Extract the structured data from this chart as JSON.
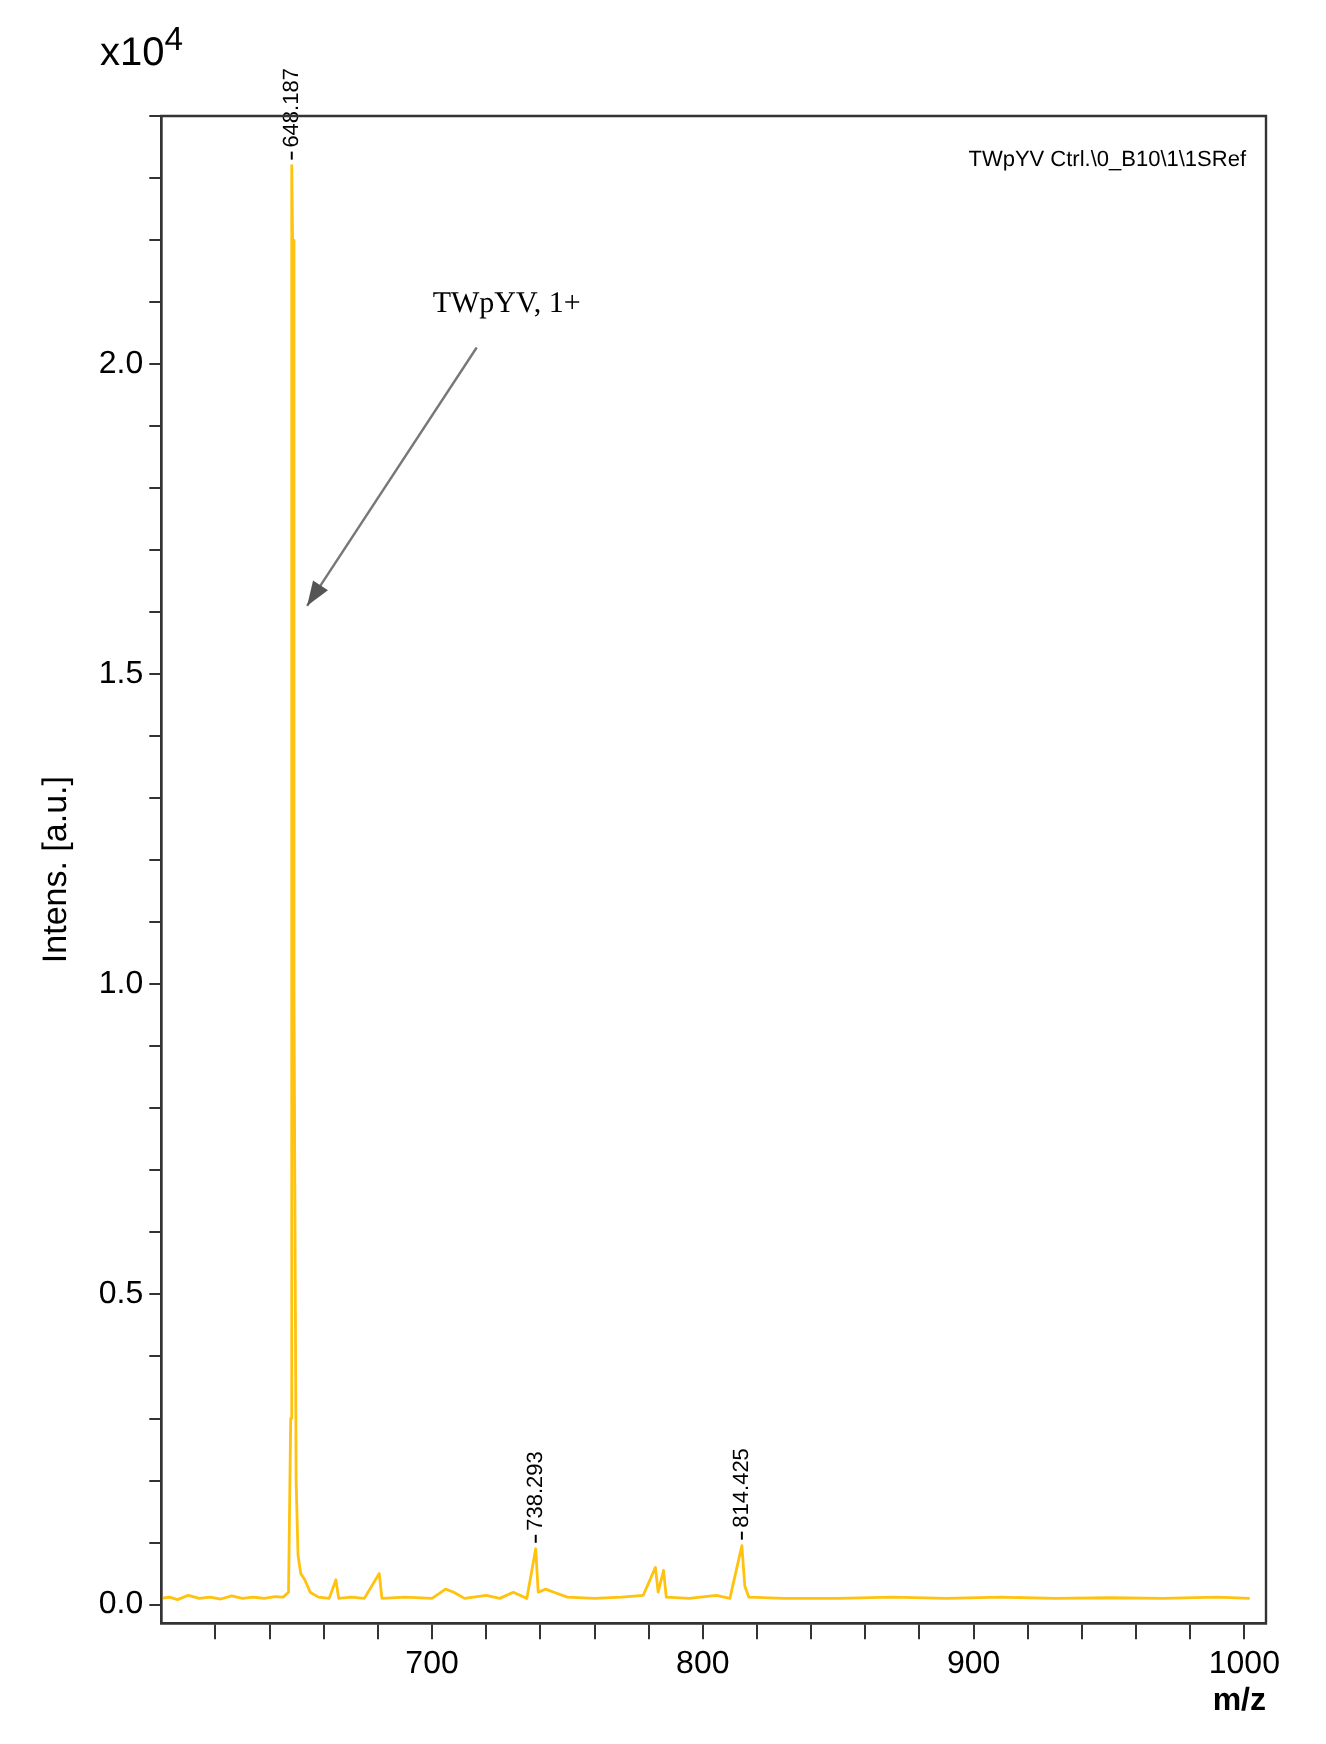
{
  "chart_data": {
    "type": "line",
    "ylabel": "Intens. [a.u.]",
    "xlabel": "m/z",
    "annotations": [
      "TWpYV Ctrl.\\0_B10\\1\\1SRef",
      "x10$^{4}$",
      "TWpYV, 1+",
      {
        "text": "648.187",
        "x": 648.187,
        "y": 2.32
      },
      {
        "text": "738.293",
        "x": 738.293,
        "y": 0.09
      },
      {
        "text": "814.425",
        "x": 814.425,
        "y": 0.095
      }
    ],
    "series": [
      {
        "color": "#ffc20e",
        "x": [
          600,
          603,
          606,
          610,
          614,
          618,
          622,
          626,
          630,
          634,
          638,
          642,
          645,
          647,
          647.8,
          648.187,
          648.5,
          649,
          649.4,
          649.8,
          650.5,
          651.5,
          653,
          655,
          658,
          662,
          664.5,
          665.5,
          670,
          675,
          680.5,
          681.5,
          690,
          700,
          705,
          708,
          712,
          720,
          725,
          730,
          735,
          738.293,
          739.2,
          742,
          745,
          750,
          760,
          770,
          778,
          782.5,
          783.5,
          785.5,
          786.5,
          795,
          805,
          810,
          814.425,
          815.5,
          817,
          830,
          850,
          870,
          890,
          910,
          930,
          950,
          970,
          990,
          1002
        ],
        "values": [
          0.01,
          0.012,
          0.008,
          0.015,
          0.01,
          0.012,
          0.009,
          0.014,
          0.01,
          0.012,
          0.01,
          0.013,
          0.012,
          0.02,
          0.3,
          2.32,
          2.2,
          1.0,
          0.6,
          0.2,
          0.08,
          0.05,
          0.04,
          0.02,
          0.012,
          0.01,
          0.04,
          0.01,
          0.012,
          0.01,
          0.05,
          0.01,
          0.012,
          0.01,
          0.025,
          0.02,
          0.01,
          0.015,
          0.01,
          0.02,
          0.01,
          0.09,
          0.02,
          0.025,
          0.02,
          0.012,
          0.01,
          0.012,
          0.015,
          0.06,
          0.02,
          0.055,
          0.012,
          0.01,
          0.015,
          0.01,
          0.095,
          0.03,
          0.012,
          0.01,
          0.01,
          0.012,
          0.01,
          0.012,
          0.01,
          0.011,
          0.01,
          0.012,
          0.01
        ]
      }
    ],
    "xlim": [
      600,
      1008
    ],
    "xticks": [
      {
        "value": 620,
        "label": null
      },
      {
        "value": 640,
        "label": null
      },
      {
        "value": 660,
        "label": null
      },
      {
        "value": 680,
        "label": null
      },
      700,
      {
        "value": 720,
        "label": null
      },
      {
        "value": 740,
        "label": null
      },
      {
        "value": 760,
        "label": null
      },
      {
        "value": 780,
        "label": null
      },
      800,
      {
        "value": 820,
        "label": null
      },
      {
        "value": 840,
        "label": null
      },
      {
        "value": 860,
        "label": null
      },
      {
        "value": 880,
        "label": null
      },
      900,
      {
        "value": 920,
        "label": null
      },
      {
        "value": 940,
        "label": null
      },
      {
        "value": 960,
        "label": null
      },
      {
        "value": 980,
        "label": null
      },
      1000
    ],
    "ylim": [
      -0.03,
      2.4
    ],
    "yticks": [
      {
        "value": 0,
        "label": "0.0"
      },
      {
        "value": 0.1,
        "label": null
      },
      {
        "value": 0.2,
        "label": null
      },
      {
        "value": 0.3,
        "label": null
      },
      {
        "value": 0.4,
        "label": null
      },
      {
        "value": 0.5,
        "label": "0.5"
      },
      {
        "value": 0.6,
        "label": null
      },
      {
        "value": 0.7,
        "label": null
      },
      {
        "value": 0.8,
        "label": null
      },
      {
        "value": 0.9,
        "label": null
      },
      {
        "value": 1.0,
        "label": "1.0"
      },
      {
        "value": 1.1,
        "label": null
      },
      {
        "value": 1.2,
        "label": null
      },
      {
        "value": 1.3,
        "label": null
      },
      {
        "value": 1.4,
        "label": null
      },
      {
        "value": 1.5,
        "label": "1.5"
      },
      {
        "value": 1.6,
        "label": null
      },
      {
        "value": 1.7,
        "label": null
      },
      {
        "value": 1.8,
        "label": null
      },
      {
        "value": 1.9,
        "label": null
      },
      {
        "value": 2.0,
        "label": "2.0"
      },
      {
        "value": 2.1,
        "label": null
      },
      {
        "value": 2.2,
        "label": null
      },
      {
        "value": 2.3,
        "label": null
      },
      {
        "value": 2.4,
        "label": null
      }
    ],
    "grid": false,
    "legend": false,
    "marker": "none",
    "line_style": "solid"
  }
}
